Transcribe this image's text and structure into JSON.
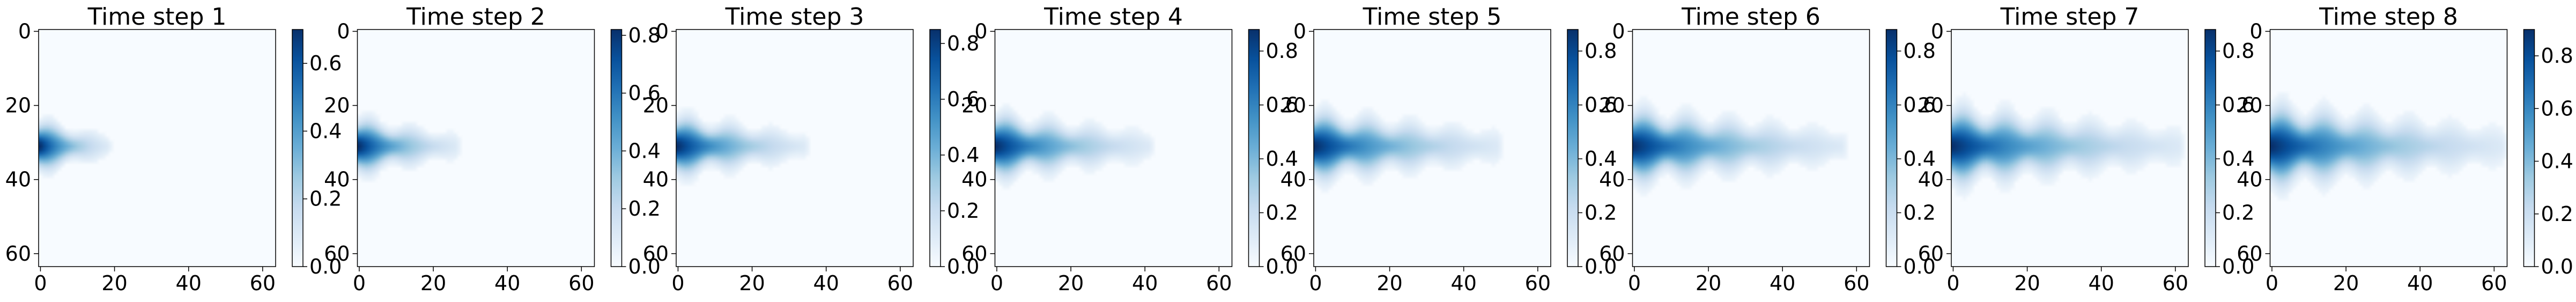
{
  "chart_data": [
    {
      "type": "heatmap",
      "title": "Time step 1",
      "xticks": [
        0,
        20,
        40,
        60
      ],
      "yticks": [
        0,
        20,
        40,
        60
      ],
      "xlim": [
        0,
        63
      ],
      "ylim": [
        63,
        0
      ],
      "colorbar": {
        "ticks": [
          0.0,
          0.2,
          0.4,
          0.6
        ],
        "range": [
          0.0,
          0.7
        ]
      },
      "colormap": "Blues",
      "plume": {
        "source_row": 31,
        "length": 18,
        "peak": 0.7,
        "half_width": 6
      }
    },
    {
      "type": "heatmap",
      "title": "Time step 2",
      "xticks": [
        0,
        20,
        40,
        60
      ],
      "yticks": [
        0,
        20,
        40,
        60
      ],
      "xlim": [
        0,
        63
      ],
      "ylim": [
        63,
        0
      ],
      "colorbar": {
        "ticks": [
          0.0,
          0.2,
          0.4,
          0.6,
          0.8
        ],
        "range": [
          0.0,
          0.82
        ]
      },
      "colormap": "Blues",
      "plume": {
        "source_row": 31,
        "length": 26,
        "peak": 0.82,
        "half_width": 6.5
      }
    },
    {
      "type": "heatmap",
      "title": "Time step 3",
      "xticks": [
        0,
        20,
        40,
        60
      ],
      "yticks": [
        0,
        20,
        40,
        60
      ],
      "xlim": [
        0,
        63
      ],
      "ylim": [
        63,
        0
      ],
      "colorbar": {
        "ticks": [
          0.0,
          0.2,
          0.4,
          0.6,
          0.8
        ],
        "range": [
          0.0,
          0.85
        ]
      },
      "colormap": "Blues",
      "plume": {
        "source_row": 31,
        "length": 34,
        "peak": 0.85,
        "half_width": 7
      }
    },
    {
      "type": "heatmap",
      "title": "Time step 4",
      "xticks": [
        0,
        20,
        40,
        60
      ],
      "yticks": [
        0,
        20,
        40,
        60
      ],
      "xlim": [
        0,
        63
      ],
      "ylim": [
        63,
        0
      ],
      "colorbar": {
        "ticks": [
          0.0,
          0.2,
          0.4,
          0.6,
          0.8
        ],
        "range": [
          0.0,
          0.88
        ]
      },
      "colormap": "Blues",
      "plume": {
        "source_row": 31,
        "length": 41,
        "peak": 0.88,
        "half_width": 7.5
      }
    },
    {
      "type": "heatmap",
      "title": "Time step 5",
      "xticks": [
        0,
        20,
        40,
        60
      ],
      "yticks": [
        0,
        20,
        40,
        60
      ],
      "xlim": [
        0,
        63
      ],
      "ylim": [
        63,
        0
      ],
      "colorbar": {
        "ticks": [
          0.0,
          0.2,
          0.4,
          0.6,
          0.8
        ],
        "range": [
          0.0,
          0.88
        ]
      },
      "colormap": "Blues",
      "plume": {
        "source_row": 31,
        "length": 49,
        "peak": 0.88,
        "half_width": 8
      }
    },
    {
      "type": "heatmap",
      "title": "Time step 6",
      "xticks": [
        0,
        20,
        40,
        60
      ],
      "yticks": [
        0,
        20,
        40,
        60
      ],
      "xlim": [
        0,
        63
      ],
      "ylim": [
        63,
        0
      ],
      "colorbar": {
        "ticks": [
          0.0,
          0.2,
          0.4,
          0.6,
          0.8
        ],
        "range": [
          0.0,
          0.88
        ]
      },
      "colormap": "Blues",
      "plume": {
        "source_row": 31,
        "length": 56,
        "peak": 0.88,
        "half_width": 8.5
      }
    },
    {
      "type": "heatmap",
      "title": "Time step 7",
      "xticks": [
        0,
        20,
        40,
        60
      ],
      "yticks": [
        0,
        20,
        40,
        60
      ],
      "xlim": [
        0,
        63
      ],
      "ylim": [
        63,
        0
      ],
      "colorbar": {
        "ticks": [
          0.0,
          0.2,
          0.4,
          0.6,
          0.8
        ],
        "range": [
          0.0,
          0.88
        ]
      },
      "colormap": "Blues",
      "plume": {
        "source_row": 31,
        "length": 61,
        "peak": 0.88,
        "half_width": 9
      }
    },
    {
      "type": "heatmap",
      "title": "Time step 8",
      "xticks": [
        0,
        20,
        40,
        60
      ],
      "yticks": [
        0,
        20,
        40,
        60
      ],
      "xlim": [
        0,
        63
      ],
      "ylim": [
        63,
        0
      ],
      "colorbar": {
        "ticks": [
          0.0,
          0.2,
          0.4,
          0.6,
          0.8
        ],
        "range": [
          0.0,
          0.9
        ]
      },
      "colormap": "Blues",
      "plume": {
        "source_row": 31,
        "length": 62,
        "peak": 0.9,
        "half_width": 9.5
      }
    }
  ]
}
